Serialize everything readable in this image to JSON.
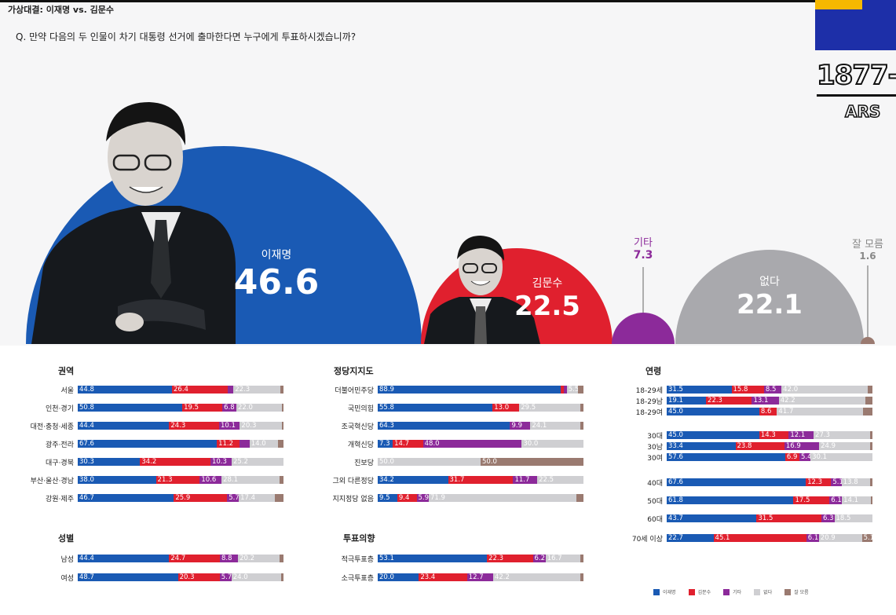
{
  "header": {
    "title": "가상대결: 이재명 vs. 김문수",
    "question": "Q. 만약 다음의 두 인물이 차기 대통령 선거에 출마한다면 누구에게 투표하시겠습니까?"
  },
  "broadcaster": {
    "phone": "1877-",
    "ars": "ARS"
  },
  "colors": {
    "lee": "#1a5ab4",
    "kim": "#e0202e",
    "other": "#8c2a9a",
    "none": "#cfcfd2",
    "unsure": "#9a7a70"
  },
  "chart_data": [
    {
      "type": "bubble",
      "title": "가상대결: 이재명 vs. 김문수",
      "series": [
        {
          "name": "이재명",
          "value": 46.6,
          "label": "46.6"
        },
        {
          "name": "김문수",
          "value": 22.5,
          "label": "22.5"
        },
        {
          "name": "기타",
          "value": 7.3,
          "label": "7.3"
        },
        {
          "name": "없다",
          "value": 22.1,
          "label": "22.1"
        },
        {
          "name": "잘 모름",
          "value": 1.6,
          "label": "1.6"
        }
      ]
    },
    {
      "type": "bar",
      "stacked": true,
      "series_names": [
        "이재명",
        "김문수",
        "기타",
        "없다",
        "잘 모름"
      ],
      "panels": [
        {
          "title": "권역",
          "rows": [
            {
              "label": "서울",
              "values": [
                44.8,
                26.4,
                2.8,
                22.3,
                1.5
              ]
            },
            {
              "label": "인천·경기",
              "values": [
                50.8,
                19.5,
                6.8,
                22.0,
                0.9
              ]
            },
            {
              "label": "대전·충청·세종",
              "values": [
                44.4,
                24.3,
                10.1,
                20.3,
                0.9
              ]
            },
            {
              "label": "광주·전라",
              "values": [
                67.6,
                11.2,
                4.7,
                14.0,
                2.5
              ]
            },
            {
              "label": "대구·경북",
              "values": [
                30.3,
                34.2,
                10.3,
                25.2,
                0.0
              ]
            },
            {
              "label": "부산·울산·경남",
              "values": [
                38.0,
                21.3,
                10.6,
                28.1,
                2.0
              ]
            },
            {
              "label": "강원·제주",
              "values": [
                46.7,
                25.9,
                5.7,
                17.4,
                4.3
              ]
            }
          ]
        },
        {
          "title": "정당지지도",
          "rows": [
            {
              "label": "더불어민주당",
              "values": [
                88.9,
                1.5,
                1.5,
                5.5,
                2.6
              ]
            },
            {
              "label": "국민의힘",
              "values": [
                55.8,
                13.0,
                0.0,
                29.5,
                1.7
              ]
            },
            {
              "label": "조국혁신당",
              "values": [
                64.3,
                0.0,
                9.9,
                24.1,
                1.7
              ]
            },
            {
              "label": "개혁신당",
              "values": [
                7.3,
                14.7,
                48.0,
                30.0,
                0.0
              ]
            },
            {
              "label": "진보당",
              "values": [
                0.0,
                0.0,
                0.0,
                50.0,
                50.0
              ]
            },
            {
              "label": "그외 다른정당",
              "values": [
                34.2,
                31.7,
                11.7,
                22.5,
                0.0
              ]
            },
            {
              "label": "지지정당 없음",
              "values": [
                9.5,
                9.4,
                5.9,
                71.9,
                3.3
              ]
            }
          ]
        },
        {
          "title": "연령",
          "rows": [
            {
              "label": "18-29세",
              "values": [
                31.5,
                15.8,
                8.5,
                42.0,
                2.2
              ]
            },
            {
              "label": "18-29남",
              "values": [
                19.1,
                22.3,
                13.1,
                42.2,
                3.3
              ]
            },
            {
              "label": "18-29여",
              "values": [
                45.0,
                8.6,
                0.0,
                41.7,
                4.7
              ]
            },
            {
              "label": "30대",
              "values": [
                45.0,
                14.3,
                12.1,
                27.3,
                1.3
              ]
            },
            {
              "label": "30남",
              "values": [
                33.4,
                23.8,
                16.9,
                24.9,
                1.0
              ]
            },
            {
              "label": "30여",
              "values": [
                57.6,
                6.9,
                5.4,
                30.1,
                0.0
              ]
            },
            {
              "label": "40대",
              "values": [
                67.6,
                12.3,
                5.1,
                13.8,
                1.2
              ]
            },
            {
              "label": "50대",
              "values": [
                61.8,
                17.5,
                6.1,
                14.1,
                0.5
              ]
            },
            {
              "label": "60대",
              "values": [
                43.7,
                31.5,
                6.3,
                18.5,
                0.0
              ]
            },
            {
              "label": "70세 이상",
              "values": [
                22.7,
                45.1,
                6.1,
                20.9,
                5.1
              ]
            }
          ]
        },
        {
          "title": "성별",
          "rows": [
            {
              "label": "남성",
              "values": [
                44.4,
                24.7,
                8.8,
                20.2,
                1.9
              ]
            },
            {
              "label": "여성",
              "values": [
                48.7,
                20.3,
                5.7,
                24.0,
                1.3
              ]
            }
          ]
        },
        {
          "title": "투표의향",
          "rows": [
            {
              "label": "적극투표층",
              "values": [
                53.1,
                22.3,
                6.2,
                16.7,
                1.7
              ]
            },
            {
              "label": "소극투표층",
              "values": [
                20.0,
                23.4,
                12.7,
                42.2,
                1.7
              ]
            }
          ]
        }
      ]
    }
  ],
  "legend": [
    "이재명",
    "김문수",
    "기타",
    "없다",
    "잘 모름"
  ]
}
